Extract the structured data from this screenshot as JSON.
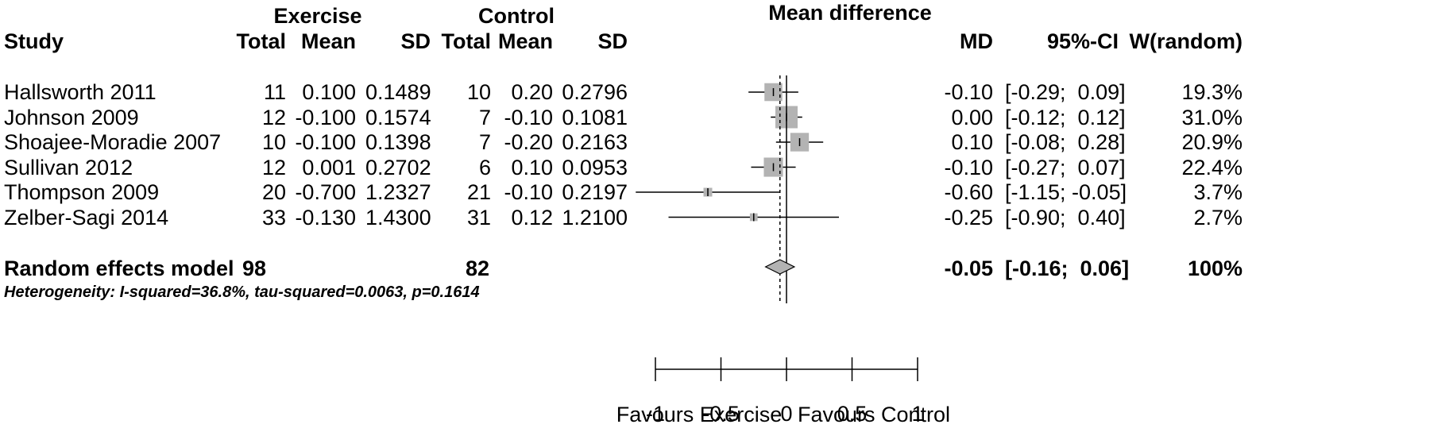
{
  "chart_data": {
    "type": "forest",
    "title": "Mean difference",
    "group_headers": [
      "Exercise",
      "Control"
    ],
    "column_headers": [
      "Study",
      "Total",
      "Mean",
      "SD",
      "Total",
      "Mean",
      "SD",
      "MD",
      "95%-CI",
      "W(random)"
    ],
    "studies": [
      {
        "study": "Hallsworth 2011",
        "ex_total": "11",
        "ex_mean": "0.100",
        "ex_sd": "0.1489",
        "ct_total": "10",
        "ct_mean": "0.20",
        "ct_sd": "0.2796",
        "md_text": "-0.10",
        "ci_text": "[-0.29;  0.09]",
        "weight_text": "19.3%",
        "md": -0.1,
        "lower": -0.29,
        "upper": 0.09,
        "weight": 19.3
      },
      {
        "study": "Johnson 2009",
        "ex_total": "12",
        "ex_mean": "-0.100",
        "ex_sd": "0.1574",
        "ct_total": "7",
        "ct_mean": "-0.10",
        "ct_sd": "0.1081",
        "md_text": "0.00",
        "ci_text": "[-0.12;  0.12]",
        "weight_text": "31.0%",
        "md": 0.0,
        "lower": -0.12,
        "upper": 0.12,
        "weight": 31.0
      },
      {
        "study": "Shoajee-Moradie 2007",
        "ex_total": "10",
        "ex_mean": "-0.100",
        "ex_sd": "0.1398",
        "ct_total": "7",
        "ct_mean": "-0.20",
        "ct_sd": "0.2163",
        "md_text": "0.10",
        "ci_text": "[-0.08;  0.28]",
        "weight_text": "20.9%",
        "md": 0.1,
        "lower": -0.08,
        "upper": 0.28,
        "weight": 20.9
      },
      {
        "study": "Sullivan 2012",
        "ex_total": "12",
        "ex_mean": "0.001",
        "ex_sd": "0.2702",
        "ct_total": "6",
        "ct_mean": "0.10",
        "ct_sd": "0.0953",
        "md_text": "-0.10",
        "ci_text": "[-0.27;  0.07]",
        "weight_text": "22.4%",
        "md": -0.1,
        "lower": -0.27,
        "upper": 0.07,
        "weight": 22.4
      },
      {
        "study": "Thompson 2009",
        "ex_total": "20",
        "ex_mean": "-0.700",
        "ex_sd": "1.2327",
        "ct_total": "21",
        "ct_mean": "-0.10",
        "ct_sd": "0.2197",
        "md_text": "-0.60",
        "ci_text": "[-1.15; -0.05]",
        "weight_text": "3.7%",
        "md": -0.6,
        "lower": -1.15,
        "upper": -0.05,
        "weight": 3.7
      },
      {
        "study": "Zelber-Sagi 2014",
        "ex_total": "33",
        "ex_mean": "-0.130",
        "ex_sd": "1.4300",
        "ct_total": "31",
        "ct_mean": "0.12",
        "ct_sd": "1.2100",
        "md_text": "-0.25",
        "ci_text": "[-0.90;  0.40]",
        "weight_text": "2.7%",
        "md": -0.25,
        "lower": -0.9,
        "upper": 0.4,
        "weight": 2.7
      }
    ],
    "pooled": {
      "label": "Random effects model",
      "ex_total": "98",
      "ct_total": "82",
      "md_text": "-0.05",
      "ci_text": "[-0.16;  0.06]",
      "weight_text": "100%",
      "md": -0.05,
      "lower": -0.16,
      "upper": 0.06
    },
    "heterogeneity": "Heterogeneity: I-squared=36.8%, tau-squared=0.0063, p=0.1614",
    "x_ticks": [
      -1,
      -0.5,
      0,
      0.5,
      1
    ],
    "x_tick_labels": [
      "-1",
      "-0.5",
      "0",
      "0.5",
      "1"
    ],
    "xlim": [
      -1,
      1
    ],
    "xlabel_left": "Favours Exercise",
    "xlabel_right": "Favours Control",
    "no_effect_line": 0,
    "pooled_line": -0.05,
    "colors": {
      "box": "#b3b3b3",
      "diamond": "#b3b3b3",
      "line": "#000000"
    }
  }
}
